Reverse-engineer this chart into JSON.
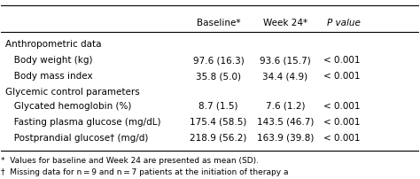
{
  "col_headers": [
    "",
    "Baseline*",
    "Week 24*",
    "P value"
  ],
  "section1_header": "Anthropometric data",
  "section2_header": "Glycemic control parameters",
  "rows": [
    {
      "label": "   Body weight (kg)",
      "baseline": "97.6 (16.3)",
      "week24": "93.6 (15.7)",
      "pvalue": "< 0.001"
    },
    {
      "label": "   Body mass index",
      "baseline": "35.8 (5.0)",
      "week24": "34.4 (4.9)",
      "pvalue": "< 0.001"
    },
    {
      "label": "   Glycated hemoglobin (%)",
      "baseline": "8.7 (1.5)",
      "week24": "7.6 (1.2)",
      "pvalue": "< 0.001"
    },
    {
      "label": "   Fasting plasma glucose (mg/dL)",
      "baseline": "175.4 (58.5)",
      "week24": "143.5 (46.7)",
      "pvalue": "< 0.001"
    },
    {
      "label": "   Postprandial glucose† (mg/d)",
      "baseline": "218.9 (56.2)",
      "week24": "163.9 (39.8)",
      "pvalue": "< 0.001"
    }
  ],
  "footnotes": [
    "*  Values for baseline and Week 24 are presented as mean (SD).",
    "†  Missing data for n = 9 and n = 7 patients at the initiation of therapy a"
  ],
  "background": "#ffffff",
  "header_line_color": "#000000",
  "text_color": "#000000",
  "fontsize": 7.5,
  "footnote_fontsize": 6.5
}
